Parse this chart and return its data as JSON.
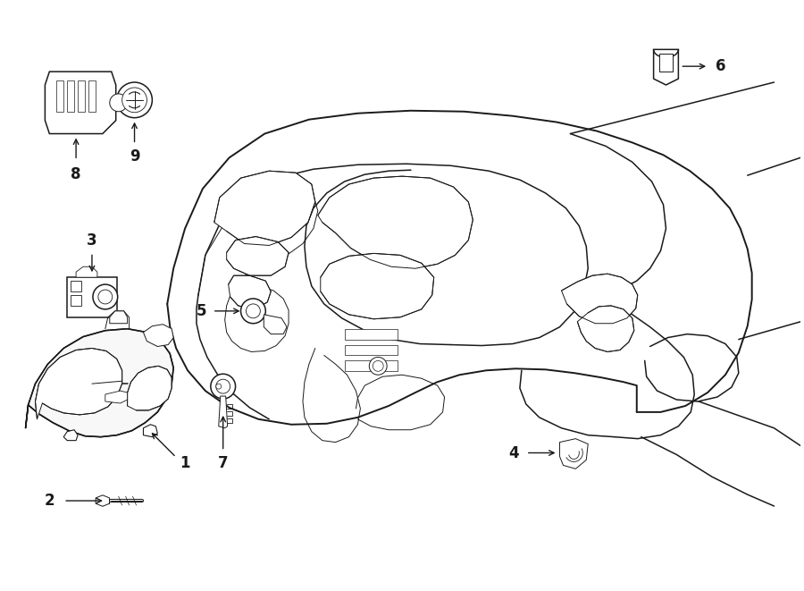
{
  "bg_color": "#ffffff",
  "line_color": "#1a1a1a",
  "fig_width": 9.0,
  "fig_height": 6.61,
  "dpi": 100,
  "label_fontsize": 12,
  "label_bold": true
}
